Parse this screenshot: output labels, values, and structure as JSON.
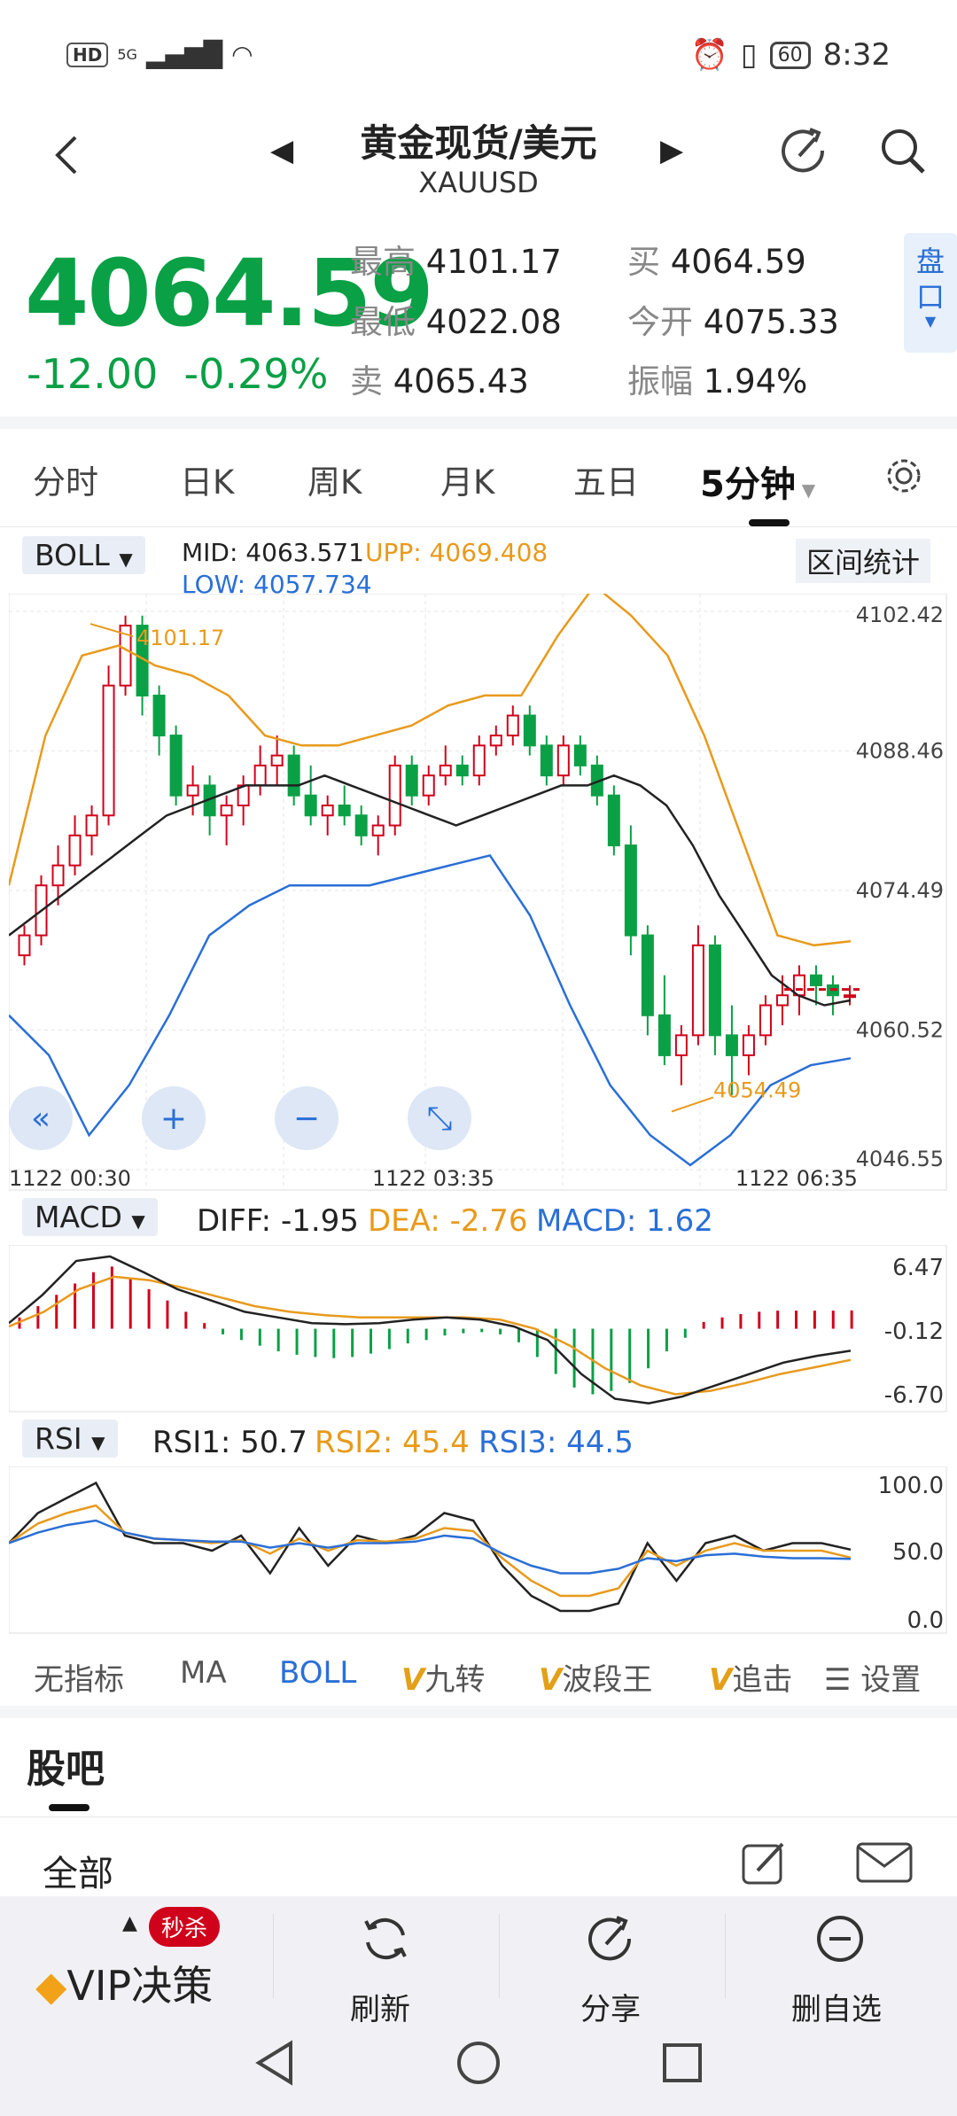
{
  "status": {
    "left": "HD",
    "signal": "5G",
    "time": "8:32",
    "battery": "60"
  },
  "header": {
    "title": "黄金现货/美元",
    "subtitle": "XAUUSD"
  },
  "quote": {
    "price": "4064.59",
    "change": "-12.00",
    "change_pct": "-0.29%",
    "high_label": "最高",
    "high": "4101.17",
    "low_label": "最低",
    "low": "4022.08",
    "sell_label": "卖",
    "sell": "4065.43",
    "buy_label": "买",
    "buy": "4064.59",
    "open_label": "今开",
    "open": "4075.33",
    "amp_label": "振幅",
    "amp": "1.94%",
    "panel_btn": "盘口"
  },
  "colors": {
    "up": "#d0021b",
    "down": "#0aa046",
    "orange": "#e89a1c",
    "blue": "#2a6fd6",
    "black": "#222222"
  },
  "tabs": [
    "分时",
    "日K",
    "周K",
    "月K",
    "五日",
    "5分钟"
  ],
  "active_tab": "5分钟",
  "boll": {
    "selector": "BOLL",
    "mid": "MID: 4063.571",
    "upp": "UPP: 4069.408",
    "low": "LOW: 4057.734",
    "range_btn": "区间统计",
    "y_ticks": [
      "4102.42",
      "4088.46",
      "4074.49",
      "4060.52",
      "4046.55"
    ],
    "x_ticks": [
      "1122  00:30",
      "1122  03:35",
      "1122  06:35"
    ],
    "max_label": "4101.17",
    "min_label": "4054.49"
  },
  "macd": {
    "selector": "MACD",
    "diff": "DIFF: -1.95",
    "dea": "DEA: -2.76",
    "macd": "MACD: 1.62",
    "y_ticks": [
      "6.47",
      "-0.12",
      "-6.70"
    ]
  },
  "rsi": {
    "selector": "RSI",
    "rsi1": "RSI1: 50.7",
    "rsi2": "RSI2: 45.4",
    "rsi3": "RSI3: 44.5",
    "y_ticks": [
      "100.0",
      "50.0",
      "0.0"
    ]
  },
  "chart_data": [
    {
      "type": "candlestick",
      "title": "",
      "ylim": [
        4046.55,
        4102.42
      ],
      "y_ticks": [
        "4102.42",
        "4088.46",
        "4074.49",
        "4060.52",
        "4046.55"
      ],
      "candles": [
        [
          4068,
          4071,
          4067,
          4070
        ],
        [
          4070,
          4076,
          4069,
          4075
        ],
        [
          4075,
          4079,
          4073,
          4077
        ],
        [
          4077,
          4082,
          4076,
          4080
        ],
        [
          4080,
          4083,
          4078,
          4082
        ],
        [
          4082,
          4097,
          4081,
          4095
        ],
        [
          4095,
          4102,
          4094,
          4101
        ],
        [
          4101,
          4102,
          4092,
          4094
        ],
        [
          4094,
          4095,
          4088,
          4090
        ],
        [
          4090,
          4091,
          4083,
          4084
        ],
        [
          4084,
          4087,
          4082,
          4085
        ],
        [
          4085,
          4086,
          4080,
          4082
        ],
        [
          4082,
          4084,
          4079,
          4083
        ],
        [
          4083,
          4086,
          4081,
          4085
        ],
        [
          4085,
          4089,
          4084,
          4087
        ],
        [
          4087,
          4090,
          4085,
          4088
        ],
        [
          4088,
          4089,
          4083,
          4084
        ],
        [
          4084,
          4087,
          4081,
          4082
        ],
        [
          4082,
          4084,
          4080,
          4083
        ],
        [
          4083,
          4085,
          4081,
          4082
        ],
        [
          4082,
          4083,
          4079,
          4080
        ],
        [
          4080,
          4082,
          4078,
          4081
        ],
        [
          4081,
          4088,
          4080,
          4087
        ],
        [
          4087,
          4088,
          4083,
          4084
        ],
        [
          4084,
          4087,
          4083,
          4086
        ],
        [
          4086,
          4089,
          4085,
          4087
        ],
        [
          4087,
          4088,
          4085,
          4086
        ],
        [
          4086,
          4090,
          4085,
          4089
        ],
        [
          4089,
          4091,
          4088,
          4090
        ],
        [
          4090,
          4093,
          4089,
          4092
        ],
        [
          4092,
          4093,
          4088,
          4089
        ],
        [
          4089,
          4090,
          4085,
          4086
        ],
        [
          4086,
          4090,
          4085,
          4089
        ],
        [
          4089,
          4090,
          4086,
          4087
        ],
        [
          4087,
          4088,
          4083,
          4084
        ],
        [
          4084,
          4085,
          4078,
          4079
        ],
        [
          4079,
          4081,
          4068,
          4070
        ],
        [
          4070,
          4071,
          4060,
          4062
        ],
        [
          4062,
          4066,
          4057,
          4058
        ],
        [
          4058,
          4061,
          4055,
          4060
        ],
        [
          4060,
          4071,
          4059,
          4069
        ],
        [
          4069,
          4070,
          4058,
          4060
        ],
        [
          4060,
          4063,
          4054,
          4058
        ],
        [
          4058,
          4061,
          4056,
          4060
        ],
        [
          4060,
          4064,
          4059,
          4063
        ],
        [
          4063,
          4066,
          4061,
          4064
        ],
        [
          4064,
          4067,
          4062,
          4066
        ],
        [
          4066,
          4067,
          4063,
          4065
        ],
        [
          4065,
          4066,
          4062,
          4064
        ],
        [
          4064,
          4065,
          4063,
          4064
        ]
      ],
      "mid_line": [
        4070,
        4072,
        4074,
        4076,
        4078,
        4080,
        4082,
        4083,
        4084,
        4085,
        4085,
        4085,
        4086,
        4085,
        4084,
        4083,
        4082,
        4081,
        4082,
        4083,
        4084,
        4085,
        4085,
        4086,
        4085,
        4083,
        4079,
        4074,
        4070,
        4066,
        4064,
        4063,
        4063.5
      ],
      "upp_line": [
        4075,
        4090,
        4098,
        4099,
        4097,
        4096,
        4094,
        4090,
        4089,
        4089,
        4090,
        4091,
        4093,
        4094,
        4094,
        4100,
        4105,
        4102,
        4098,
        4090,
        4080,
        4070,
        4069,
        4069.4
      ],
      "low_line": [
        4062,
        4058,
        4050,
        4055,
        4062,
        4070,
        4073,
        4075,
        4075,
        4075,
        4076,
        4077,
        4078,
        4072,
        4063,
        4055,
        4050,
        4047,
        4050,
        4055,
        4057,
        4057.7
      ]
    },
    {
      "type": "bar",
      "title": "",
      "ylim": [
        -6.7,
        6.47
      ],
      "histogram": [
        1,
        2,
        3,
        4,
        5,
        5.5,
        4.5,
        3.5,
        2.5,
        1.5,
        0.5,
        -0.5,
        -1,
        -1.5,
        -2,
        -2.3,
        -2.5,
        -2.6,
        -2.5,
        -2.2,
        -1.8,
        -1.3,
        -1,
        -0.6,
        -0.4,
        -0.3,
        -0.5,
        -1.2,
        -2.5,
        -4,
        -5.2,
        -5.8,
        -5.5,
        -4.8,
        -3.5,
        -2,
        -0.8,
        0.6,
        1,
        1.3,
        1.5,
        1.6,
        1.6,
        1.6,
        1.6,
        1.62
      ],
      "diff_line": [
        0.5,
        3,
        6,
        6.4,
        5,
        3.5,
        2.5,
        1.5,
        1,
        0.5,
        0.4,
        0.5,
        0.8,
        1,
        0.8,
        0.2,
        -1,
        -4,
        -6.2,
        -6.6,
        -6,
        -5,
        -4,
        -3,
        -2.4,
        -1.95
      ],
      "dea_line": [
        0.2,
        1.5,
        3.5,
        4.6,
        4.3,
        3.6,
        2.8,
        2,
        1.5,
        1.2,
        1,
        1,
        1,
        1,
        0.8,
        0,
        -1.5,
        -3.5,
        -5,
        -5.8,
        -5.5,
        -4.8,
        -4,
        -3.4,
        -2.76
      ]
    },
    {
      "type": "line",
      "title": "",
      "ylim": [
        0,
        100
      ],
      "series": [
        {
          "name": "RSI1",
          "values": [
            55,
            75,
            85,
            95,
            60,
            55,
            55,
            50,
            60,
            35,
            65,
            40,
            60,
            55,
            60,
            75,
            70,
            40,
            20,
            10,
            10,
            15,
            55,
            30,
            55,
            60,
            50,
            55,
            55,
            50.7
          ]
        },
        {
          "name": "RSI2",
          "values": [
            55,
            68,
            75,
            80,
            62,
            58,
            57,
            55,
            57,
            48,
            58,
            50,
            57,
            56,
            58,
            65,
            63,
            45,
            30,
            20,
            20,
            25,
            50,
            40,
            50,
            55,
            50,
            50,
            50,
            45.4
          ]
        },
        {
          "name": "RSI3",
          "values": [
            55,
            62,
            67,
            70,
            62,
            58,
            57,
            56,
            56,
            52,
            55,
            52,
            55,
            55,
            56,
            60,
            58,
            48,
            40,
            35,
            35,
            38,
            45,
            43,
            47,
            48,
            46,
            45,
            45,
            44.5
          ]
        }
      ]
    }
  ],
  "indicator_tabs": [
    "无指标",
    "MA",
    "BOLL",
    "九转",
    "波段王",
    "追击"
  ],
  "indicator_v": "V",
  "settings_label": "设置",
  "guba": {
    "title": "股吧",
    "all": "全部"
  },
  "bottom_bar": {
    "vip_badge": "秒杀",
    "vip": "VIP决策",
    "refresh": "刷新",
    "share": "分享",
    "remove": "删自选"
  },
  "icons": [
    "back-icon",
    "prev-arrow-icon",
    "next-arrow-icon",
    "share-icon",
    "search-icon",
    "settings-icon",
    "rewind-icon",
    "zoom-in-icon",
    "zoom-out-icon",
    "expand-icon",
    "edit-icon",
    "mail-icon",
    "diamond-icon",
    "refresh-icon",
    "minus-circle-icon",
    "nav-back-icon",
    "nav-home-icon",
    "nav-recent-icon"
  ]
}
